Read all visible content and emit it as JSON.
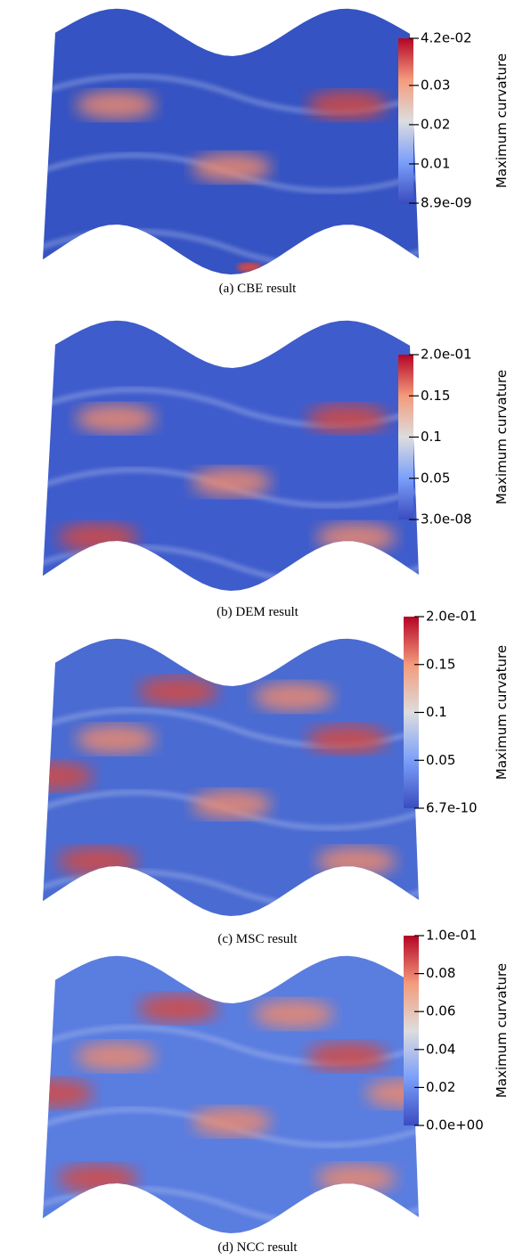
{
  "panels": [
    {
      "caption": "(a) CBE result",
      "colorbar": {
        "title": "Maximum curvature",
        "lim": [
          8.9e-09,
          0.042
        ],
        "ticks": [
          {
            "value": 0.042,
            "label": "4.2e-02"
          },
          0.03,
          0.02,
          0.01,
          {
            "value": 8.9e-09,
            "label": "8.9e-09"
          }
        ]
      }
    },
    {
      "caption": "(b) DEM result",
      "colorbar": {
        "title": "Maximum curvature",
        "lim": [
          3e-08,
          0.2
        ],
        "ticks": [
          {
            "value": 0.2,
            "label": "2.0e-01"
          },
          0.15,
          0.1,
          0.05,
          {
            "value": 3e-08,
            "label": "3.0e-08"
          }
        ]
      }
    },
    {
      "caption": "(c) MSC result",
      "colorbar": {
        "title": "Maximum curvature",
        "lim": [
          6.7e-10,
          0.2
        ],
        "ticks": [
          {
            "value": 0.2,
            "label": "2.0e-01"
          },
          0.15,
          0.1,
          0.05,
          {
            "value": 6.7e-10,
            "label": "6.7e-10"
          }
        ]
      }
    },
    {
      "caption": "(d) NCC result",
      "colorbar": {
        "title": "Maximum curvature",
        "lim": [
          0,
          0.1
        ],
        "ticks": [
          {
            "value": 0.1,
            "label": "1.0e-01"
          },
          0.08,
          0.06,
          0.04,
          0.02,
          {
            "value": 0,
            "label": "0.0e+00"
          }
        ]
      }
    }
  ]
}
